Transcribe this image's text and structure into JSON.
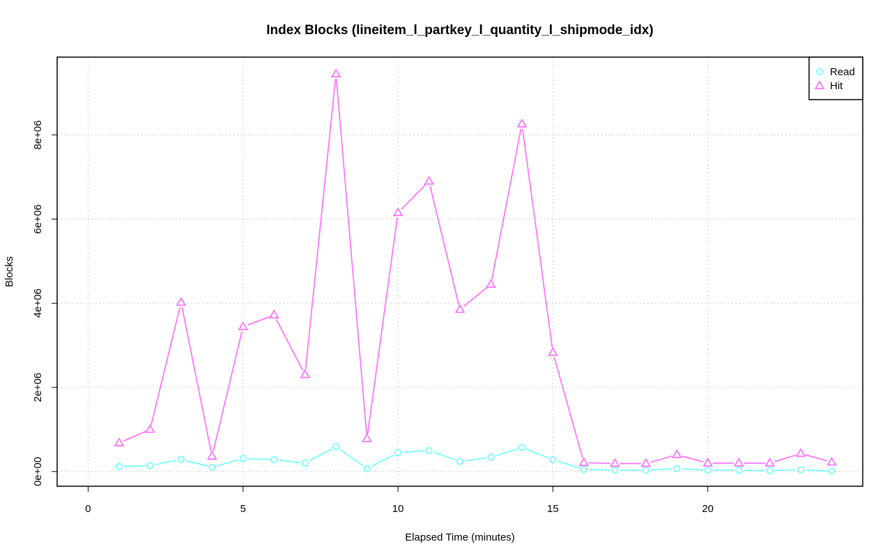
{
  "chart_data": {
    "type": "line",
    "title": "Index Blocks (lineitem_l_partkey_l_quantity_l_shipmode_idx)",
    "xlabel": "Elapsed Time (minutes)",
    "ylabel": "Blocks",
    "xlim": [
      -1,
      25
    ],
    "ylim": [
      -350000,
      9850000
    ],
    "x_ticks": [
      0,
      5,
      10,
      15,
      20
    ],
    "x_tick_labels": [
      "0",
      "5",
      "10",
      "15",
      "20"
    ],
    "y_ticks": [
      0,
      2000000,
      4000000,
      6000000,
      8000000
    ],
    "y_tick_labels": [
      "0e+00",
      "2e+06",
      "4e+06",
      "6e+06",
      "8e+06"
    ],
    "grid": true,
    "legend_position": "top-right",
    "x": [
      1,
      2,
      3,
      4,
      5,
      6,
      7,
      8,
      9,
      10,
      11,
      12,
      13,
      14,
      15,
      16,
      17,
      18,
      19,
      20,
      21,
      22,
      23,
      24
    ],
    "series": [
      {
        "name": "Read",
        "color": "#66ffff",
        "marker": "circle",
        "values": [
          120000,
          140000,
          290000,
          100000,
          310000,
          280000,
          200000,
          590000,
          70000,
          450000,
          500000,
          240000,
          340000,
          570000,
          280000,
          50000,
          30000,
          30000,
          70000,
          30000,
          30000,
          20000,
          40000,
          10000
        ]
      },
      {
        "name": "Hit",
        "color": "#ff66ff",
        "marker": "triangle",
        "values": [
          680000,
          1000000,
          4020000,
          360000,
          3440000,
          3720000,
          2300000,
          9450000,
          780000,
          6150000,
          6900000,
          3850000,
          4450000,
          8260000,
          2830000,
          210000,
          190000,
          190000,
          400000,
          200000,
          200000,
          200000,
          430000,
          220000
        ]
      }
    ]
  }
}
